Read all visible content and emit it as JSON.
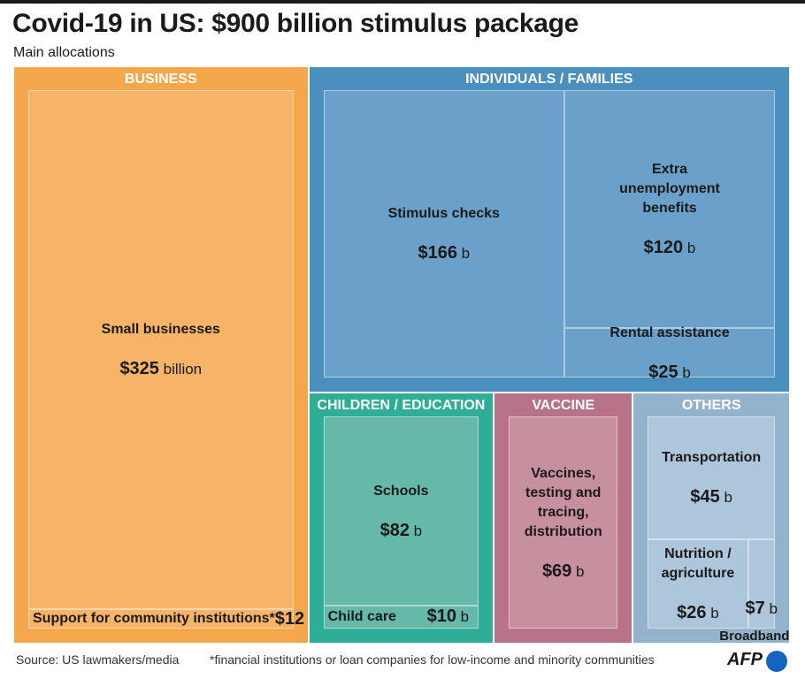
{
  "chart_data": {
    "type": "treemap",
    "title": "Covid-19 in US: $900 billion stimulus package",
    "subtitle": "Main allocations",
    "groups": [
      {
        "name": "BUSINESS",
        "color": "#f5a74b",
        "inner_color": "#f7b468",
        "labels": [
          "Small businesses",
          "Support for community institutions*"
        ],
        "values": [
          325,
          12
        ],
        "value_labels": [
          "$325 billion",
          "$12 b"
        ]
      },
      {
        "name": "INDIVIDUALS / FAMILIES",
        "color": "#4a8fbd",
        "inner_color": "#6aa0c9",
        "labels": [
          "Stimulus checks",
          "Extra unemployment benefits",
          "Rental assistance"
        ],
        "values": [
          166,
          120,
          25
        ],
        "value_labels": [
          "$166 b",
          "$120 b",
          "$25 b"
        ]
      },
      {
        "name": "CHILDREN / EDUCATION",
        "color": "#2eae96",
        "inner_color": "#66b9a9",
        "labels": [
          "Schools",
          "Child care"
        ],
        "values": [
          82,
          10
        ],
        "value_labels": [
          "$82 b",
          "$10 b"
        ]
      },
      {
        "name": "VACCINE",
        "color": "#b77388",
        "inner_color": "#c7909f",
        "labels": [
          "Vaccines, testing and tracing, distribution"
        ],
        "values": [
          69
        ],
        "value_labels": [
          "$69 b"
        ]
      },
      {
        "name": "OTHERS",
        "color": "#93b3cd",
        "inner_color": "#adc6db",
        "labels": [
          "Transportation",
          "Nutrition / agriculture",
          "Broadband"
        ],
        "values": [
          45,
          26,
          7
        ],
        "value_labels": [
          "$45 b",
          "$26 b",
          "$7 b"
        ]
      }
    ],
    "source": "Source: US lawmakers/media",
    "footnote": "*financial institutions or loan companies for low-income and minority communities",
    "logo": "AFP"
  }
}
